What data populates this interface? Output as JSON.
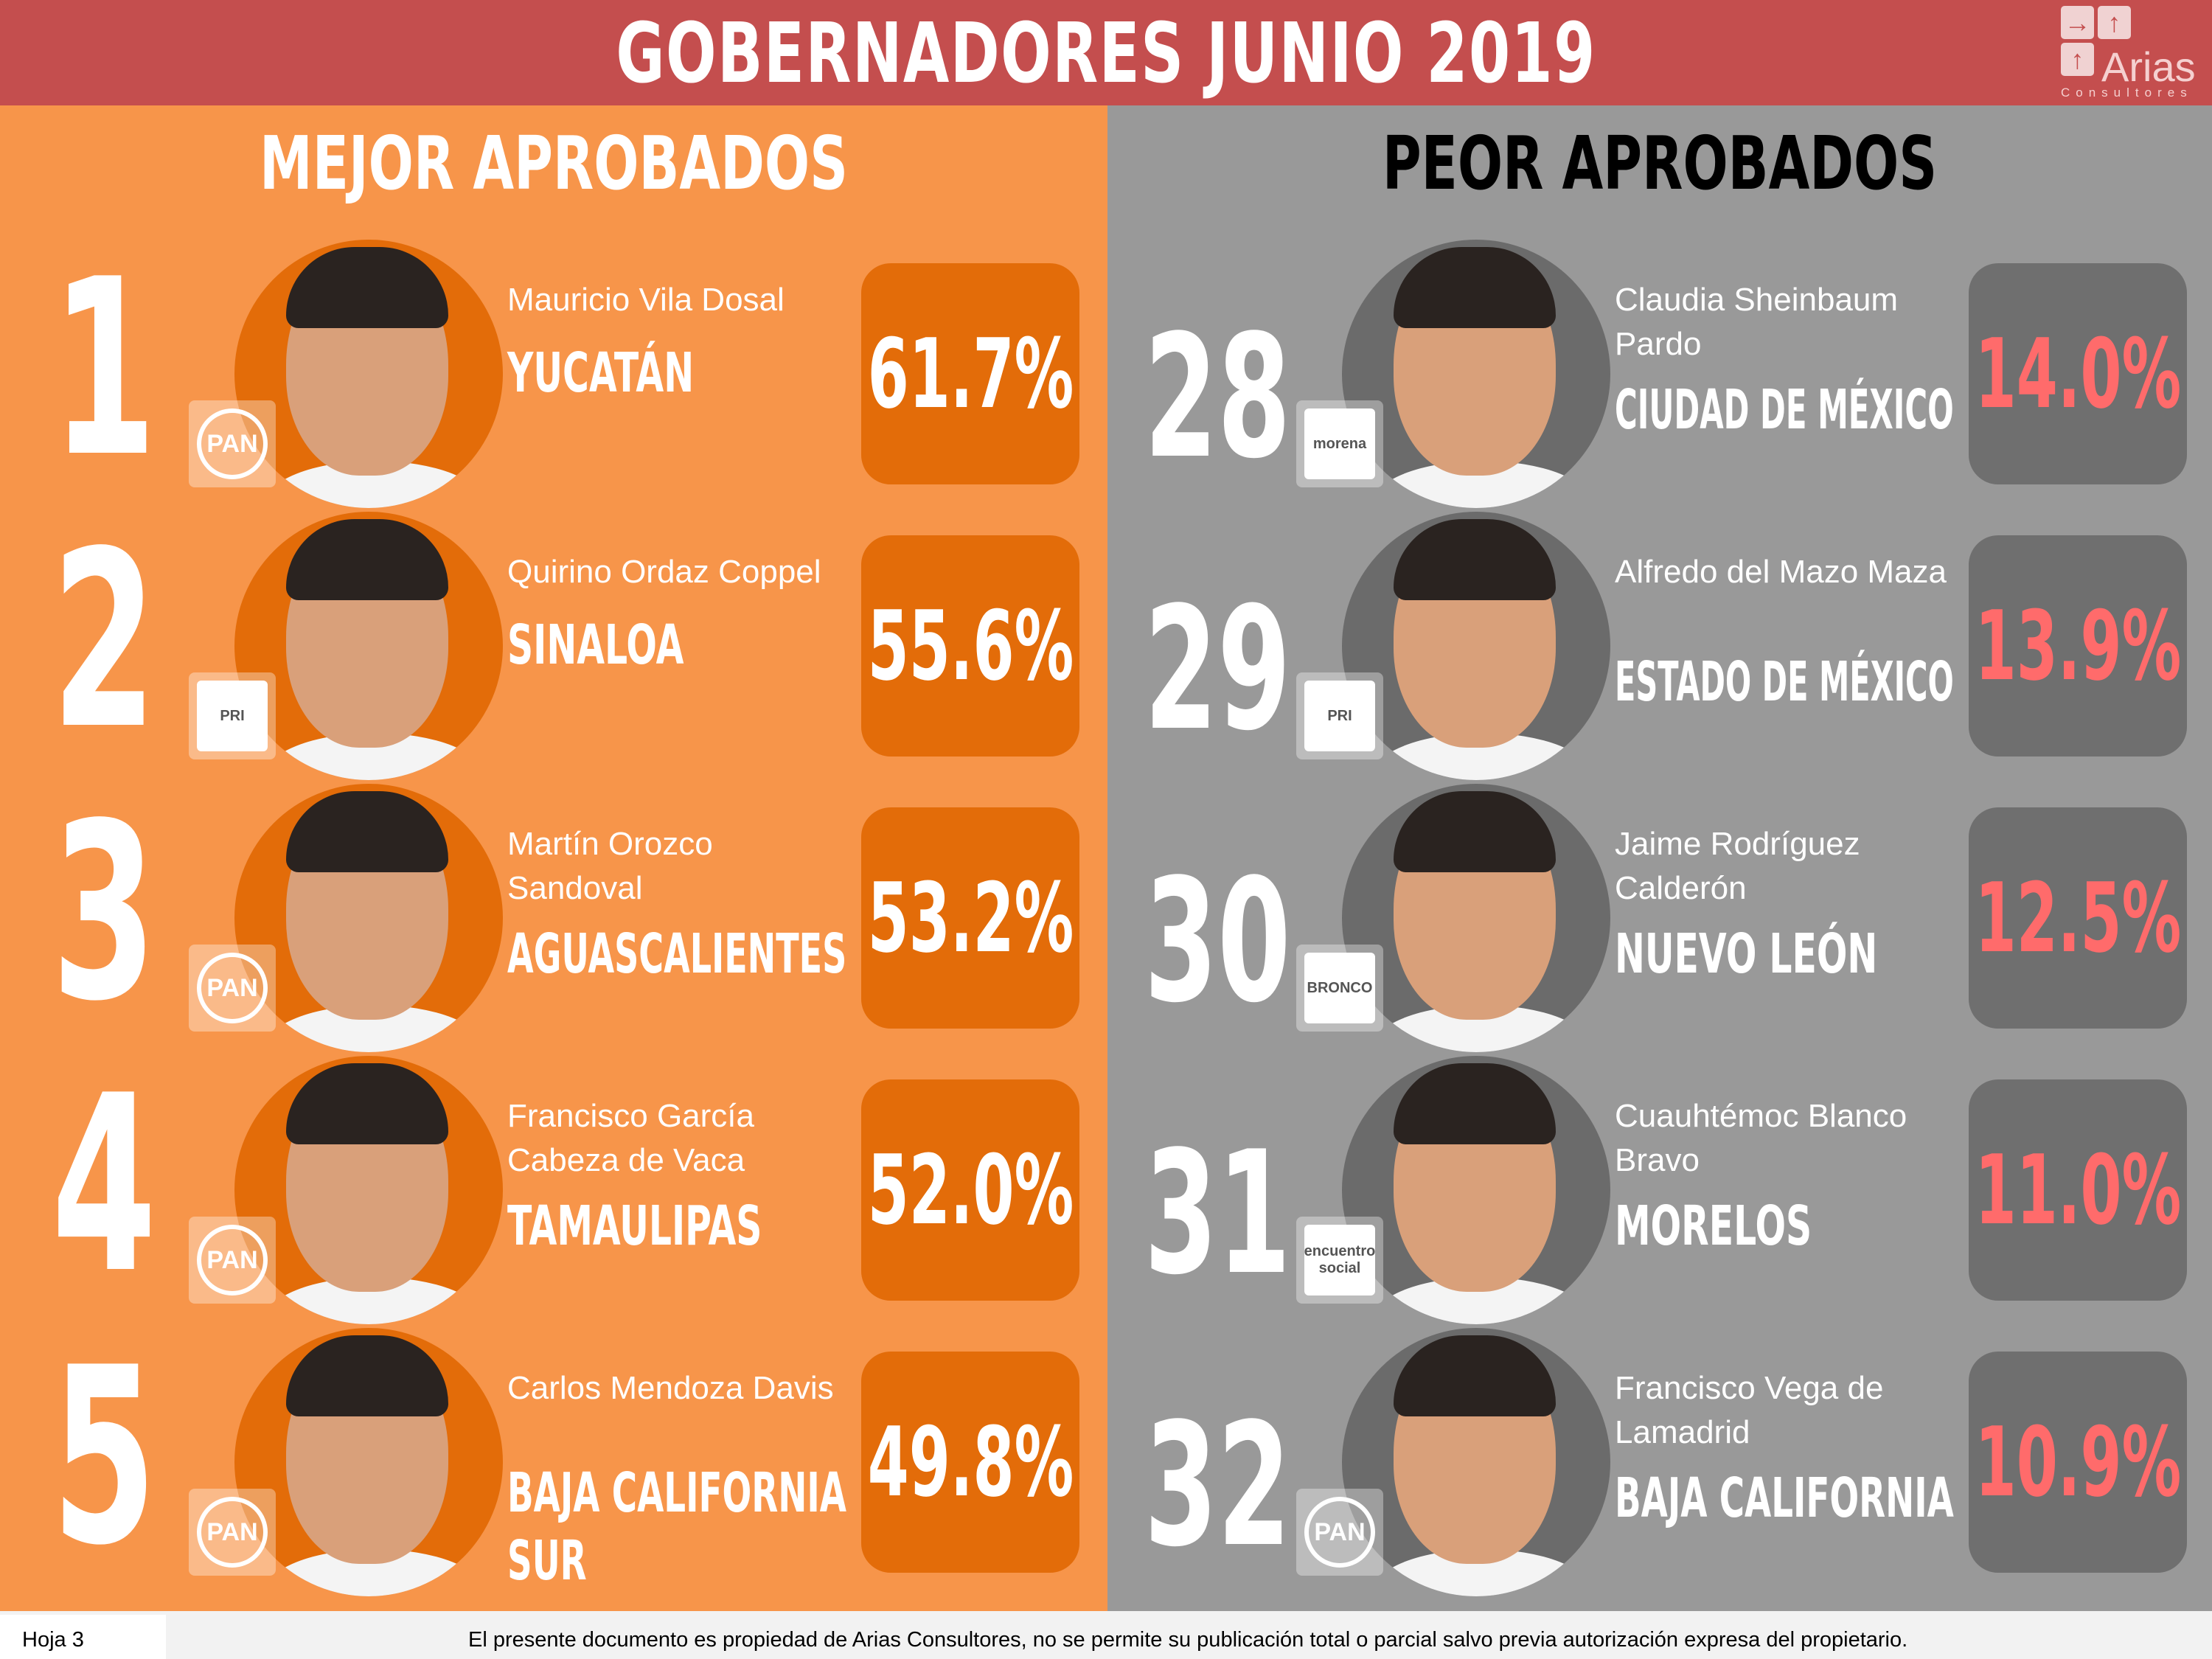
{
  "header": {
    "title": "GOBERNADORES JUNIO 2019",
    "logo_name": "Arias",
    "logo_sub": "Consultores"
  },
  "best": {
    "title": "MEJOR APROBADOS",
    "items": [
      {
        "rank": "1",
        "name": "Mauricio Vila Dosal",
        "state": "YUCATÁN",
        "pct": "61.7%",
        "party": "PAN"
      },
      {
        "rank": "2",
        "name": "Quirino Ordaz Coppel",
        "state": "SINALOA",
        "pct": "55.6%",
        "party": "PRI"
      },
      {
        "rank": "3",
        "name": "Martín Orozco Sandoval",
        "state": "AGUASCALIENTES",
        "pct": "53.2%",
        "party": "PAN"
      },
      {
        "rank": "4",
        "name": "Francisco García Cabeza de Vaca",
        "state": "TAMAULIPAS",
        "pct": "52.0%",
        "party": "PAN"
      },
      {
        "rank": "5",
        "name": "Carlos Mendoza Davis",
        "state": "BAJA CALIFORNIA SUR",
        "pct": "49.8%",
        "party": "PAN"
      }
    ]
  },
  "worst": {
    "title": "PEOR APROBADOS",
    "items": [
      {
        "rank": "28",
        "name": "Claudia Sheinbaum Pardo",
        "state": "CIUDAD DE MÉXICO",
        "pct": "14.0%",
        "party": "morena"
      },
      {
        "rank": "29",
        "name": "Alfredo del Mazo Maza",
        "state": "ESTADO DE MÉXICO",
        "pct": "13.9%",
        "party": "PRI"
      },
      {
        "rank": "30",
        "name": "Jaime Rodríguez Calderón",
        "state": "NUEVO LEÓN",
        "pct": "12.5%",
        "party": "BRONCO"
      },
      {
        "rank": "31",
        "name": "Cuauhtémoc Blanco Bravo",
        "state": "MORELOS",
        "pct": "11.0%",
        "party": "encuentro social"
      },
      {
        "rank": "32",
        "name": "Francisco Vega de Lamadrid",
        "state": "BAJA CALIFORNIA",
        "pct": "10.9%",
        "party": "PAN"
      }
    ]
  },
  "footer": {
    "sheet": "Hoja 3",
    "disclaimer": "El presente documento es propiedad de Arias Consultores, no se permite su publicación total o parcial salvo previa autorización expresa del propietario."
  }
}
